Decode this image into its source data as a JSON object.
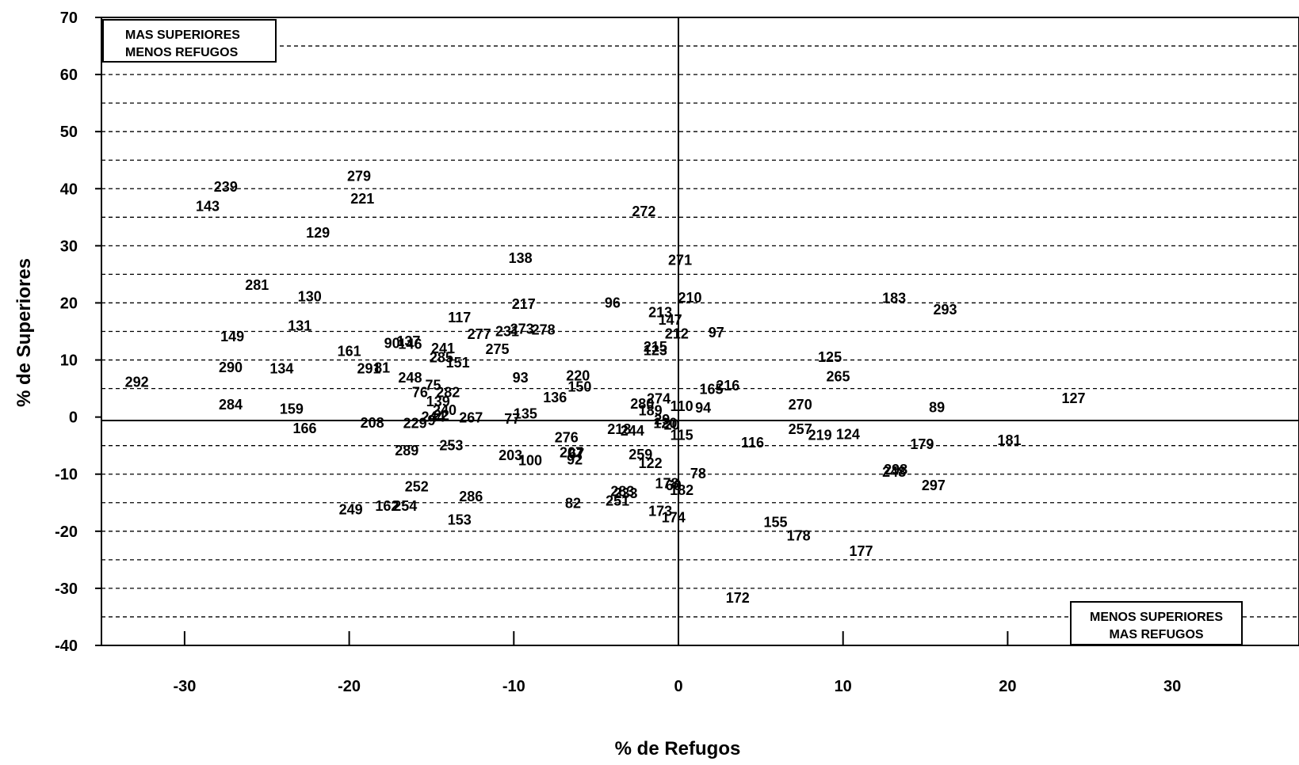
{
  "chart_data": {
    "type": "scatter",
    "xlabel": "% de Refugos",
    "ylabel": "% de Superiores",
    "xlim": [
      -35,
      34
    ],
    "ylim": [
      -40,
      70
    ],
    "xticks": [
      -30,
      -20,
      -10,
      0,
      10,
      20,
      30
    ],
    "yticks": [
      70,
      60,
      50,
      40,
      30,
      20,
      10,
      0,
      -10,
      -20,
      -30,
      -40
    ],
    "grid": "dashed horizontal every 5",
    "annotations": [
      {
        "lines": [
          "MAS SUPERIORES",
          "MENOS REFUGOS"
        ],
        "position": "top-left"
      },
      {
        "lines": [
          "MENOS SUPERIORES",
          "MAS REFUGOS"
        ],
        "position": "bottom-right"
      }
    ],
    "points": [
      {
        "label": "239",
        "x": -27.5,
        "y": 40.3
      },
      {
        "label": "143",
        "x": -28.6,
        "y": 36.9
      },
      {
        "label": "279",
        "x": -19.4,
        "y": 42.2
      },
      {
        "label": "221",
        "x": -19.2,
        "y": 38.2
      },
      {
        "label": "129",
        "x": -21.9,
        "y": 32.3
      },
      {
        "label": "272",
        "x": -2.1,
        "y": 36.0
      },
      {
        "label": "138",
        "x": -9.6,
        "y": 27.8
      },
      {
        "label": "271",
        "x": 0.1,
        "y": 27.5
      },
      {
        "label": "281",
        "x": -25.6,
        "y": 23.1
      },
      {
        "label": "130",
        "x": -22.4,
        "y": 21.1
      },
      {
        "label": "217",
        "x": -9.4,
        "y": 19.8
      },
      {
        "label": "96",
        "x": -4.0,
        "y": 20.0
      },
      {
        "label": "210",
        "x": 0.7,
        "y": 20.9
      },
      {
        "label": "183",
        "x": 13.1,
        "y": 20.8
      },
      {
        "label": "293",
        "x": 16.2,
        "y": 18.8
      },
      {
        "label": "213",
        "x": -1.1,
        "y": 18.3
      },
      {
        "label": "117",
        "x": -13.3,
        "y": 17.4
      },
      {
        "label": "147",
        "x": -0.5,
        "y": 17.0
      },
      {
        "label": "131",
        "x": -23.0,
        "y": 16.0
      },
      {
        "label": "277",
        "x": -12.1,
        "y": 14.5
      },
      {
        "label": "231",
        "x": -10.4,
        "y": 15.0
      },
      {
        "label": "273",
        "x": -9.5,
        "y": 15.4
      },
      {
        "label": "278",
        "x": -8.2,
        "y": 15.3
      },
      {
        "label": "212",
        "x": -0.1,
        "y": 14.6
      },
      {
        "label": "97",
        "x": 2.3,
        "y": 14.8
      },
      {
        "label": "149",
        "x": -27.1,
        "y": 14.1
      },
      {
        "label": "90",
        "x": -17.4,
        "y": 12.9
      },
      {
        "label": "137",
        "x": -16.4,
        "y": 13.3
      },
      {
        "label": "146",
        "x": -16.3,
        "y": 12.8
      },
      {
        "label": "215",
        "x": -1.4,
        "y": 12.3
      },
      {
        "label": "123",
        "x": -1.4,
        "y": 11.7
      },
      {
        "label": "241",
        "x": -14.3,
        "y": 12.0
      },
      {
        "label": "275",
        "x": -11.0,
        "y": 11.9
      },
      {
        "label": "161",
        "x": -20.0,
        "y": 11.5
      },
      {
        "label": "125",
        "x": 9.2,
        "y": 10.5
      },
      {
        "label": "285",
        "x": -14.4,
        "y": 10.4
      },
      {
        "label": "151",
        "x": -13.4,
        "y": 9.5
      },
      {
        "label": "290",
        "x": -27.2,
        "y": 8.7
      },
      {
        "label": "134",
        "x": -24.1,
        "y": 8.5
      },
      {
        "label": "291",
        "x": -18.8,
        "y": 8.5
      },
      {
        "label": "81",
        "x": -18.0,
        "y": 8.6
      },
      {
        "label": "248",
        "x": -16.3,
        "y": 6.9
      },
      {
        "label": "93",
        "x": -9.6,
        "y": 6.9
      },
      {
        "label": "220",
        "x": -6.1,
        "y": 7.2
      },
      {
        "label": "265",
        "x": 9.7,
        "y": 7.1
      },
      {
        "label": "292",
        "x": -32.9,
        "y": 6.1
      },
      {
        "label": "75",
        "x": -14.9,
        "y": 5.6
      },
      {
        "label": "150",
        "x": -6.0,
        "y": 5.3
      },
      {
        "label": "216",
        "x": 3.0,
        "y": 5.5
      },
      {
        "label": "165",
        "x": 2.0,
        "y": 4.9
      },
      {
        "label": "76",
        "x": -15.7,
        "y": 4.3
      },
      {
        "label": "282",
        "x": -14.0,
        "y": 4.3
      },
      {
        "label": "136",
        "x": -7.5,
        "y": 3.4
      },
      {
        "label": "274",
        "x": -1.2,
        "y": 3.2
      },
      {
        "label": "127",
        "x": 24.0,
        "y": 3.3
      },
      {
        "label": "139",
        "x": -14.6,
        "y": 2.7
      },
      {
        "label": "284",
        "x": -27.2,
        "y": 2.2
      },
      {
        "label": "280",
        "x": -2.2,
        "y": 2.3
      },
      {
        "label": "270",
        "x": 7.4,
        "y": 2.2
      },
      {
        "label": "110",
        "x": 0.2,
        "y": 1.9
      },
      {
        "label": "94",
        "x": 1.5,
        "y": 1.6
      },
      {
        "label": "89",
        "x": 15.7,
        "y": 1.7
      },
      {
        "label": "159",
        "x": -23.5,
        "y": 1.4
      },
      {
        "label": "240",
        "x": -14.2,
        "y": 1.2
      },
      {
        "label": "189",
        "x": -1.7,
        "y": 1.1
      },
      {
        "label": "135",
        "x": -9.3,
        "y": 0.6
      },
      {
        "label": "29",
        "x": -1.0,
        "y": -0.5
      },
      {
        "label": "244",
        "x": -14.9,
        "y": 0.0
      },
      {
        "label": "22",
        "x": -14.4,
        "y": 0.3
      },
      {
        "label": "267",
        "x": -12.6,
        "y": -0.1
      },
      {
        "label": "77",
        "x": -10.1,
        "y": -0.3
      },
      {
        "label": "9",
        "x": -15.0,
        "y": -0.6
      },
      {
        "label": "208",
        "x": -18.6,
        "y": -1.0
      },
      {
        "label": "229",
        "x": -16.0,
        "y": -1.1
      },
      {
        "label": "120",
        "x": -0.8,
        "y": -1.1
      },
      {
        "label": "20",
        "x": -0.4,
        "y": -1.4
      },
      {
        "label": "166",
        "x": -22.7,
        "y": -2.0
      },
      {
        "label": "218",
        "x": -3.6,
        "y": -2.1
      },
      {
        "label": "244",
        "x": -2.8,
        "y": -2.4
      },
      {
        "label": "257",
        "x": 7.4,
        "y": -2.1
      },
      {
        "label": "219",
        "x": 8.6,
        "y": -3.2
      },
      {
        "label": "124",
        "x": 10.3,
        "y": -3.0
      },
      {
        "label": "115",
        "x": 0.2,
        "y": -3.2
      },
      {
        "label": "276",
        "x": -6.8,
        "y": -3.6
      },
      {
        "label": "116",
        "x": 4.5,
        "y": -4.5
      },
      {
        "label": "179",
        "x": 14.8,
        "y": -4.8
      },
      {
        "label": "181",
        "x": 20.1,
        "y": -4.1
      },
      {
        "label": "289",
        "x": -16.5,
        "y": -5.9
      },
      {
        "label": "253",
        "x": -13.8,
        "y": -5.0
      },
      {
        "label": "203",
        "x": -10.2,
        "y": -6.7
      },
      {
        "label": "100",
        "x": -9.0,
        "y": -7.6
      },
      {
        "label": "207",
        "x": -6.5,
        "y": -6.2
      },
      {
        "label": "67",
        "x": -6.2,
        "y": -6.4
      },
      {
        "label": "92",
        "x": -6.3,
        "y": -7.5
      },
      {
        "label": "259",
        "x": -2.3,
        "y": -6.6
      },
      {
        "label": "122",
        "x": -1.7,
        "y": -8.1
      },
      {
        "label": "78",
        "x": 1.2,
        "y": -9.9
      },
      {
        "label": "298",
        "x": 13.2,
        "y": -9.2
      },
      {
        "label": "248",
        "x": 13.1,
        "y": -9.6
      },
      {
        "label": "297",
        "x": 15.5,
        "y": -12.0
      },
      {
        "label": "252",
        "x": -15.9,
        "y": -12.2
      },
      {
        "label": "178",
        "x": -0.7,
        "y": -11.6
      },
      {
        "label": "60",
        "x": -0.3,
        "y": -12.0
      },
      {
        "label": "182",
        "x": 0.2,
        "y": -12.8
      },
      {
        "label": "283",
        "x": -3.4,
        "y": -13.0
      },
      {
        "label": "233",
        "x": -3.2,
        "y": -13.4
      },
      {
        "label": "286",
        "x": -12.6,
        "y": -13.9
      },
      {
        "label": "251",
        "x": -3.7,
        "y": -14.7
      },
      {
        "label": "82",
        "x": -6.4,
        "y": -15.1
      },
      {
        "label": "249",
        "x": -19.9,
        "y": -16.2
      },
      {
        "label": "162",
        "x": -17.7,
        "y": -15.6
      },
      {
        "label": "254",
        "x": -16.6,
        "y": -15.6
      },
      {
        "label": "173",
        "x": -1.1,
        "y": -16.5
      },
      {
        "label": "174",
        "x": -0.3,
        "y": -17.6
      },
      {
        "label": "153",
        "x": -13.3,
        "y": -18.0
      },
      {
        "label": "155",
        "x": 5.9,
        "y": -18.4
      },
      {
        "label": "178",
        "x": 7.3,
        "y": -20.8
      },
      {
        "label": "177",
        "x": 11.1,
        "y": -23.5
      },
      {
        "label": "172",
        "x": 3.6,
        "y": -31.7
      }
    ]
  }
}
